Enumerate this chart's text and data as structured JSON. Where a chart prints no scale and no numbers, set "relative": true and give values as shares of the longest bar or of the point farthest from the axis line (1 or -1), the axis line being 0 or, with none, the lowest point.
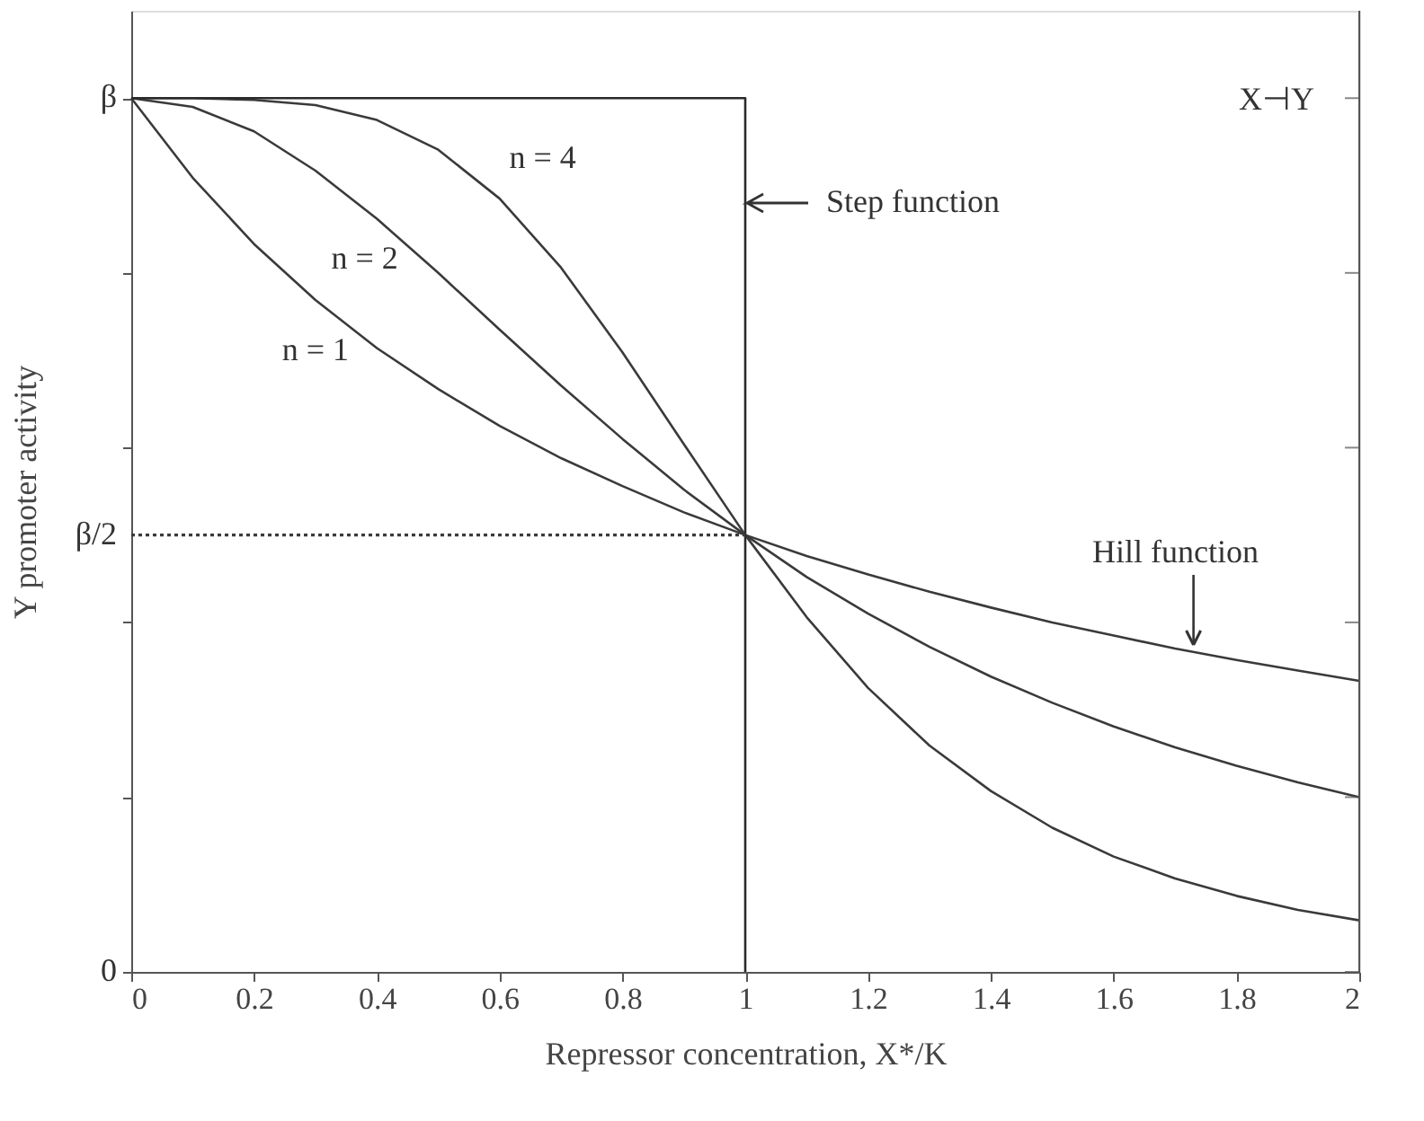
{
  "chart_data": {
    "type": "line",
    "relative": true,
    "xlabel": "Repressor concentration, X*/K",
    "ylabel": "Y promoter activity",
    "xlim": [
      0,
      2
    ],
    "xticks": [
      0,
      0.2,
      0.4,
      0.6,
      0.8,
      1,
      1.2,
      1.4,
      1.6,
      1.8,
      2
    ],
    "grid": false,
    "marker": "none",
    "series": [
      {
        "color": "#3a3a3a",
        "line_style": "solid",
        "x": [
          0,
          0.1,
          0.2,
          0.3,
          0.4,
          0.5,
          0.6,
          0.7,
          0.8,
          0.9,
          1,
          1.1,
          1.2,
          1.3,
          1.4,
          1.5,
          1.6,
          1.7,
          1.8,
          1.9,
          2
        ],
        "values": [
          1,
          0.909,
          0.833,
          0.769,
          0.714,
          0.667,
          0.625,
          0.588,
          0.556,
          0.526,
          0.5,
          0.476,
          0.455,
          0.435,
          0.417,
          0.4,
          0.385,
          0.37,
          0.357,
          0.345,
          0.333
        ]
      },
      {
        "color": "#3a3a3a",
        "line_style": "solid",
        "x": [
          0,
          0.1,
          0.2,
          0.3,
          0.4,
          0.5,
          0.6,
          0.7,
          0.8,
          0.9,
          1,
          1.1,
          1.2,
          1.3,
          1.4,
          1.5,
          1.6,
          1.7,
          1.8,
          1.9,
          2
        ],
        "values": [
          1,
          0.99,
          0.962,
          0.917,
          0.862,
          0.8,
          0.735,
          0.671,
          0.61,
          0.552,
          0.5,
          0.452,
          0.41,
          0.372,
          0.338,
          0.308,
          0.281,
          0.257,
          0.236,
          0.217,
          0.2
        ]
      },
      {
        "color": "#3a3a3a",
        "line_style": "solid",
        "x": [
          0,
          0.1,
          0.2,
          0.3,
          0.4,
          0.5,
          0.6,
          0.7,
          0.8,
          0.9,
          1,
          1.1,
          1.2,
          1.3,
          1.4,
          1.5,
          1.6,
          1.7,
          1.8,
          1.9,
          2
        ],
        "values": [
          1,
          1,
          0.998,
          0.992,
          0.975,
          0.941,
          0.885,
          0.806,
          0.709,
          0.604,
          0.5,
          0.406,
          0.325,
          0.259,
          0.207,
          0.165,
          0.132,
          0.107,
          0.087,
          0.071,
          0.059
        ]
      },
      {
        "color": "#2a2a2a",
        "line_style": "solid",
        "x": [
          0,
          1,
          1
        ],
        "values": [
          1,
          1,
          0
        ]
      },
      {
        "color": "#3a3a3a",
        "line_style": "dotted",
        "x": [
          0,
          1
        ],
        "values": [
          0.5,
          0.5
        ]
      }
    ],
    "annotations": [
      "0",
      "β/2",
      "β",
      "n = 1",
      "n = 2",
      "n = 4",
      {
        "text": "Step function",
        "x": 1,
        "y": 0.88
      },
      {
        "text": "Hill function",
        "x": 1.73,
        "y": 0.366
      },
      "X⊣Y"
    ]
  }
}
